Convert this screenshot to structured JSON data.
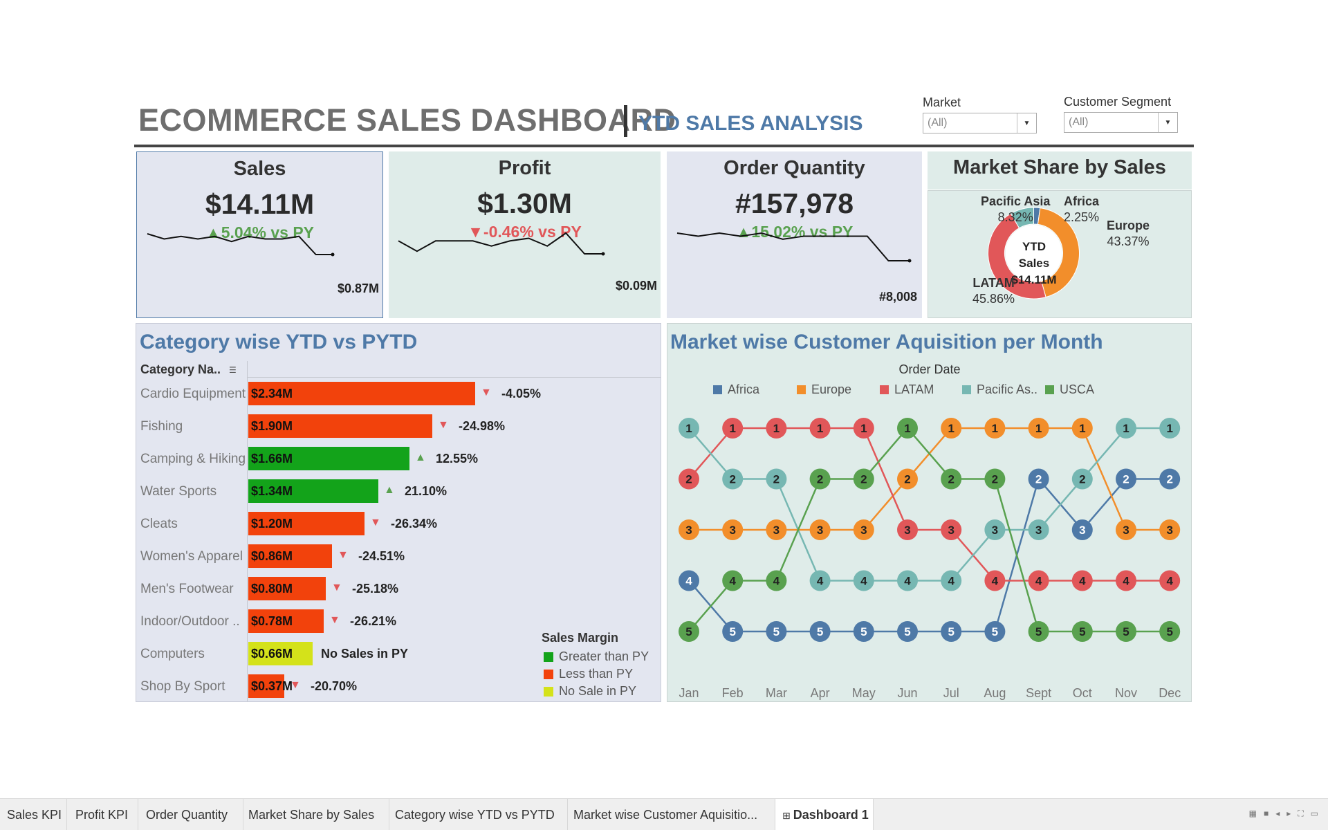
{
  "header": {
    "title": "ECOMMERCE SALES DASHBOARD",
    "subtitle": "YTD SALES ANALYSIS",
    "filters": [
      {
        "label": "Market",
        "value": "(All)"
      },
      {
        "label": "Customer Segment",
        "value": "(All)"
      }
    ]
  },
  "kpis": [
    {
      "title": "Sales",
      "value": "$14.11M",
      "change": "5.04% vs PY",
      "direction": "up",
      "spark_end": "$0.87M",
      "spark": [
        10,
        8,
        9,
        8,
        9,
        7,
        9,
        8,
        8,
        9,
        2,
        2
      ]
    },
    {
      "title": "Profit",
      "value": "$1.30M",
      "change": "-0.46% vs PY",
      "direction": "down",
      "spark_end": "$0.09M",
      "spark": [
        7,
        3,
        7,
        7,
        7,
        5,
        7,
        8,
        5,
        10,
        2,
        2
      ]
    },
    {
      "title": "Order Quantity",
      "value": "#157,978",
      "change": "15.02% vs PY",
      "direction": "up",
      "spark_end": "#8,008",
      "spark": [
        10,
        9,
        10,
        9,
        10,
        8,
        9,
        9,
        9,
        9,
        1,
        1
      ]
    }
  ],
  "market_share": {
    "title": "Market Share by Sales",
    "center_label": "YTD Sales",
    "center_value": "$14.11M",
    "slices": [
      {
        "name": "Africa",
        "pct": "2.25%",
        "value": 2.25,
        "color": "#4e79a7"
      },
      {
        "name": "Europe",
        "pct": "43.37%",
        "value": 43.37,
        "color": "#f28e2b"
      },
      {
        "name": "LATAM",
        "pct": "45.86%",
        "value": 45.86,
        "color": "#e15759"
      },
      {
        "name": "Pacific Asia",
        "pct": "8.32%",
        "value": 8.32,
        "color": "#76b7b2"
      }
    ]
  },
  "category": {
    "title": "Category wise YTD vs PYTD",
    "column_header": "Category Na..",
    "rows": [
      {
        "name": "Cardio Equipment",
        "value_label": "$2.34M",
        "value": 2.34,
        "status": "less",
        "change": "-4.05%"
      },
      {
        "name": "Fishing",
        "value_label": "$1.90M",
        "value": 1.9,
        "status": "less",
        "change": "-24.98%"
      },
      {
        "name": "Camping & Hiking",
        "value_label": "$1.66M",
        "value": 1.66,
        "status": "greater",
        "change": "12.55%"
      },
      {
        "name": "Water Sports",
        "value_label": "$1.34M",
        "value": 1.34,
        "status": "greater",
        "change": "21.10%"
      },
      {
        "name": "Cleats",
        "value_label": "$1.20M",
        "value": 1.2,
        "status": "less",
        "change": "-26.34%"
      },
      {
        "name": "Women's Apparel",
        "value_label": "$0.86M",
        "value": 0.86,
        "status": "less",
        "change": "-24.51%"
      },
      {
        "name": "Men's Footwear",
        "value_label": "$0.80M",
        "value": 0.8,
        "status": "less",
        "change": "-25.18%"
      },
      {
        "name": "Indoor/Outdoor ..",
        "value_label": "$0.78M",
        "value": 0.78,
        "status": "less",
        "change": "-26.21%"
      },
      {
        "name": "Computers",
        "value_label": "$0.66M",
        "value": 0.66,
        "status": "none",
        "change": "No Sales in PY"
      },
      {
        "name": "Shop By Sport",
        "value_label": "$0.37M",
        "value": 0.37,
        "status": "less",
        "change": "-20.70%"
      }
    ],
    "legend_title": "Sales Margin",
    "legend": [
      {
        "label": "Greater than PY",
        "color": "#13a31a"
      },
      {
        "label": "Less than PY",
        "color": "#f2420c"
      },
      {
        "label": "No Sale in PY",
        "color": "#d4e21a"
      }
    ]
  },
  "chart_data": {
    "type": "line",
    "title": "Market wise Customer Aquisition per Month",
    "xlabel": "Order Date",
    "x": [
      "Jan",
      "Feb",
      "Mar",
      "Apr",
      "May",
      "Jun",
      "Jul",
      "Aug",
      "Sept",
      "Oct",
      "Nov",
      "Dec"
    ],
    "ylabel": "",
    "y_reversed": true,
    "ylim": [
      1,
      5
    ],
    "series": [
      {
        "name": "Africa",
        "color": "#4e79a7",
        "values": [
          4,
          5,
          5,
          5,
          5,
          5,
          5,
          5,
          2,
          3,
          2,
          2
        ]
      },
      {
        "name": "Europe",
        "color": "#f28e2b",
        "values": [
          3,
          3,
          3,
          3,
          3,
          2,
          1,
          1,
          1,
          1,
          3,
          3
        ]
      },
      {
        "name": "LATAM",
        "color": "#e15759",
        "values": [
          2,
          1,
          1,
          1,
          1,
          3,
          3,
          4,
          4,
          4,
          4,
          4
        ]
      },
      {
        "name": "Pacific As..",
        "color": "#76b7b2",
        "values": [
          1,
          2,
          2,
          4,
          4,
          4,
          4,
          3,
          3,
          2,
          1,
          1
        ]
      },
      {
        "name": "USCA",
        "color": "#59a14f",
        "values": [
          5,
          4,
          4,
          2,
          2,
          1,
          2,
          2,
          5,
          5,
          5,
          5
        ]
      }
    ]
  },
  "tabs": [
    {
      "label": "Sales KPI",
      "active": false
    },
    {
      "label": "Profit KPI",
      "active": false
    },
    {
      "label": "Order Quantity",
      "active": false
    },
    {
      "label": "Market Share by Sales",
      "active": false
    },
    {
      "label": "Category wise YTD vs PYTD",
      "active": false
    },
    {
      "label": "Market wise Customer Aquisitio...",
      "active": false
    },
    {
      "label": "Dashboard 1",
      "active": true
    }
  ]
}
